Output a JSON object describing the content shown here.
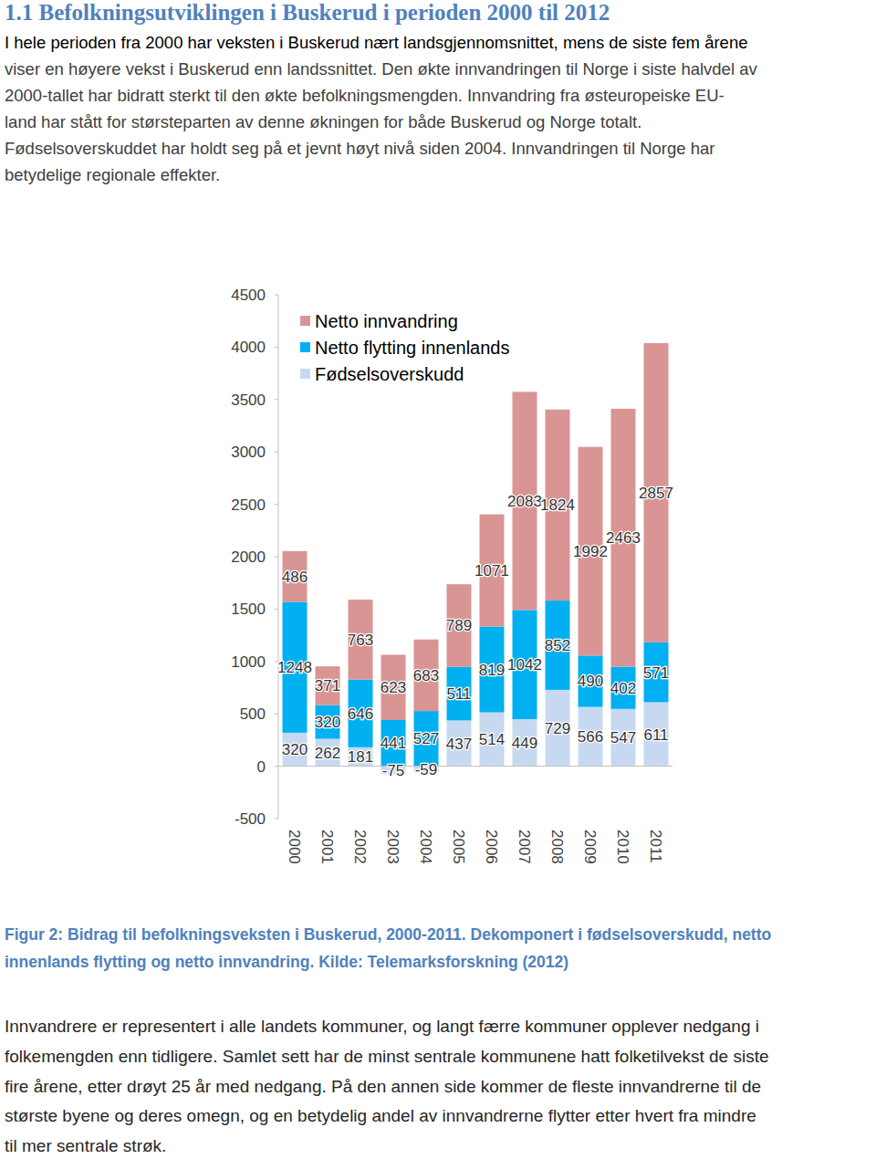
{
  "heading": "1.1 Befolkningsutviklingen i Buskerud i perioden 2000 til 2012",
  "paragraph_1": [
    "I hele perioden fra 2000 har veksten i Buskerud nært landsgjennomsnittet, mens de siste fem årene",
    "viser en høyere vekst i Buskerud enn landssnittet. Den økte innvandringen til Norge i siste halvdel av",
    "2000-tallet har bidratt sterkt til den økte befolkningsmengden. Innvandring fra østeuropeiske EU-",
    "land har stått for størsteparten av denne økningen for både Buskerud og Norge totalt.",
    "Fødselsoverskuddet har holdt seg på et jevnt høyt nivå siden 2004. Innvandringen til Norge har",
    "betydelige regionale effekter."
  ],
  "chart_data": {
    "type": "bar",
    "stacked": true,
    "data_labels": true,
    "legend": "top-left",
    "grid": false,
    "categories": [
      "2000",
      "2001",
      "2002",
      "2003",
      "2004",
      "2005",
      "2006",
      "2007",
      "2008",
      "2009",
      "2010",
      "2011"
    ],
    "series": [
      {
        "name": "Fødselsoverskudd",
        "color": "#c6d9f1",
        "values": [
          320,
          262,
          181,
          -75,
          -59,
          437,
          514,
          449,
          729,
          566,
          547,
          611
        ]
      },
      {
        "name": "Netto flytting innenlands",
        "color": "#00b0f0",
        "values": [
          1248,
          320,
          646,
          441,
          527,
          511,
          819,
          1042,
          852,
          490,
          402,
          571
        ]
      },
      {
        "name": "Netto innvandring",
        "color": "#d99594",
        "values": [
          486,
          371,
          763,
          623,
          683,
          789,
          1071,
          2083,
          1824,
          1992,
          2463,
          2857
        ]
      }
    ],
    "ylim": [
      -500,
      4500
    ],
    "yticks": [
      -500,
      0,
      500,
      1000,
      1500,
      2000,
      2500,
      3000,
      3500,
      4000,
      4500
    ]
  },
  "caption": [
    "Figur 2: Bidrag til befolkningsveksten i Buskerud, 2000-2011. Dekomponert i fødselsoverskudd, netto",
    "innenlands flytting og netto innvandring. Kilde: Telemarksforskning (2012)"
  ],
  "paragraph_2": [
    "Innvandrere er representert i alle landets kommuner, og langt færre kommuner opplever nedgang i",
    "folkemengden enn tidligere. Samlet sett har de minst sentrale kommunene hatt folketilvekst de siste",
    "fire årene, etter drøyt 25 år med nedgang. På den annen side kommer de fleste innvandrerne til de",
    "største byene og deres omegn, og en betydelig andel av innvandrerne flytter etter hvert fra mindre",
    "til mer sentrale strøk."
  ]
}
